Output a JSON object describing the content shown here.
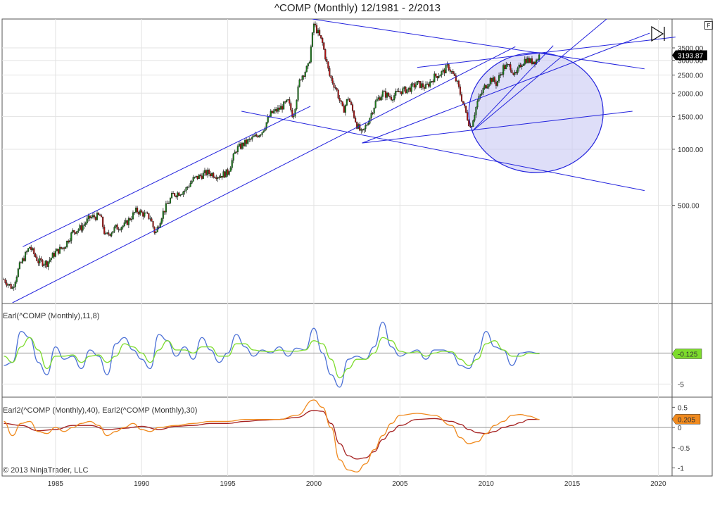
{
  "title": "^COMP (Monthly)  12/1981 - 2/2013",
  "copyright": "© 2013 NinjaTrader, LLC",
  "f_button": "F",
  "colors": {
    "line_blue": "#2222dd",
    "ellipse_fill": "#c8c8f4",
    "candle_up": "#1a7a1a",
    "candle_down": "#aa1111",
    "earl_blue": "#4a6fd6",
    "earl_green": "#7ddc2c",
    "earl2_dark": "#a52020",
    "earl2_orange": "#f08a1e",
    "price_marker": "#000000",
    "earl_marker": "#7ddc2c",
    "earl2_marker": "#f08a1e"
  },
  "chart_data": [
    {
      "type": "candlestick",
      "panel": "price",
      "y_scale": "log",
      "ylim": [
        150,
        5000
      ],
      "y_ticks": [
        "500.00",
        "1000.00",
        "1500.00",
        "2000.00",
        "2500.00",
        "3000.00",
        "3500.00"
      ],
      "last_value": "3193.87",
      "x_ticks": [
        "1985",
        "1990",
        "1995",
        "2000",
        "2005",
        "2010",
        "2015",
        "2020"
      ],
      "xlim": [
        1981.9,
        2020.8
      ],
      "close_series": {
        "x": [
          1982.0,
          1982.5,
          1982.9,
          1983.5,
          1984.0,
          1984.5,
          1985.0,
          1985.5,
          1986.0,
          1986.5,
          1987.0,
          1987.6,
          1987.9,
          1988.5,
          1989.0,
          1989.7,
          1990.5,
          1990.8,
          1991.2,
          1991.8,
          1992.5,
          1993.0,
          1993.8,
          1994.5,
          1995.0,
          1995.5,
          1996.0,
          1996.5,
          1997.0,
          1997.5,
          1998.0,
          1998.5,
          1998.8,
          1999.2,
          1999.7,
          2000.0,
          2000.2,
          2000.5,
          2000.9,
          2001.3,
          2001.7,
          2002.0,
          2002.5,
          2002.8,
          2003.2,
          2003.6,
          2004.0,
          2004.5,
          2005.0,
          2005.5,
          2006.0,
          2006.5,
          2007.0,
          2007.5,
          2007.8,
          2008.3,
          2008.8,
          2009.1,
          2009.5,
          2009.9,
          2010.3,
          2010.6,
          2011.0,
          2011.4,
          2011.7,
          2012.0,
          2012.3,
          2012.6,
          2012.9,
          2013.1
        ],
        "y": [
          200,
          180,
          235,
          300,
          250,
          245,
          280,
          300,
          360,
          380,
          430,
          440,
          340,
          380,
          390,
          470,
          430,
          350,
          450,
          570,
          600,
          690,
          750,
          720,
          750,
          1000,
          1080,
          1150,
          1250,
          1550,
          1650,
          1800,
          1500,
          2400,
          2800,
          4700,
          4300,
          3700,
          2500,
          2100,
          1600,
          1900,
          1350,
          1200,
          1450,
          1800,
          2000,
          1900,
          2050,
          2100,
          2250,
          2150,
          2450,
          2600,
          2800,
          2300,
          1600,
          1300,
          1800,
          2150,
          2400,
          2250,
          2750,
          2800,
          2450,
          2850,
          3050,
          2950,
          3000,
          3190
        ]
      },
      "trend_lines": [
        {
          "x": [
            1983.1,
            1999.8
          ],
          "y": [
            300,
            1700
          ]
        },
        {
          "x": [
            1982.5,
            2011.7
          ],
          "y": [
            150,
            3550
          ]
        },
        {
          "x": [
            1999.9,
            2019.2
          ],
          "y": [
            5000,
            2700
          ]
        },
        {
          "x": [
            1995.8,
            2019.2
          ],
          "y": [
            1600,
            600
          ]
        },
        {
          "x": [
            2002.8,
            2018.5
          ],
          "y": [
            1080,
            1600
          ]
        },
        {
          "x": [
            2002.8,
            2019.5
          ],
          "y": [
            1080,
            4200
          ]
        },
        {
          "x": [
            2006.0,
            2021.0
          ],
          "y": [
            2750,
            4000
          ]
        },
        {
          "x": [
            2009.2,
            2013.9
          ],
          "y": [
            1250,
            3600
          ]
        },
        {
          "x": [
            2009.2,
            2017.0
          ],
          "y": [
            1250,
            5000
          ]
        }
      ],
      "ellipse": {
        "cx": 2012.9,
        "cy": 1500,
        "rx_years": 3.9,
        "y_top": 3300,
        "y_bottom": 750
      }
    },
    {
      "type": "line",
      "panel": "earl",
      "label": "Earl(^COMP (Monthly),11,8)",
      "y_ticks": [
        "-5"
      ],
      "ylim": [
        -7,
        8
      ],
      "last_value": "-0.125",
      "series": [
        {
          "name": "Earl",
          "x": [
            1982.0,
            1982.5,
            1983.0,
            1983.5,
            1984.0,
            1984.5,
            1985.0,
            1985.5,
            1986.0,
            1986.5,
            1987.0,
            1987.5,
            1988.0,
            1988.5,
            1989.0,
            1989.5,
            1990.0,
            1990.5,
            1991.0,
            1991.5,
            1992.0,
            1992.5,
            1993.0,
            1993.5,
            1994.0,
            1994.5,
            1995.0,
            1995.5,
            1996.0,
            1996.5,
            1997.0,
            1997.5,
            1998.0,
            1998.5,
            1999.0,
            1999.5,
            2000.0,
            2000.5,
            2001.0,
            2001.5,
            2002.0,
            2002.5,
            2003.0,
            2003.5,
            2004.0,
            2004.5,
            2005.0,
            2005.5,
            2006.0,
            2006.5,
            2007.0,
            2007.5,
            2008.0,
            2008.5,
            2009.0,
            2009.5,
            2010.0,
            2010.5,
            2011.0,
            2011.5,
            2012.0,
            2012.5,
            2013.1
          ],
          "y": [
            -2,
            -1.5,
            3.5,
            2.5,
            -1.5,
            -3.5,
            1,
            -1,
            -0.5,
            -2.5,
            0.5,
            -0.5,
            -3.5,
            1.5,
            2.5,
            0.5,
            -1,
            -2.5,
            3,
            2,
            -0.5,
            1,
            -1,
            2.5,
            0.5,
            -1.5,
            0,
            3,
            1,
            -0.5,
            0.5,
            0,
            1,
            -0.5,
            0.8,
            0.5,
            4,
            0,
            -3.5,
            -5.5,
            -1,
            -0.5,
            -1,
            1,
            5,
            1,
            -0.5,
            0,
            0.5,
            -1,
            0.5,
            0.5,
            0,
            -2,
            -2.5,
            0,
            3.5,
            1,
            0.5,
            -2,
            0,
            0.2,
            -0.1
          ]
        },
        {
          "name": "Earl signal",
          "x": [
            1982.0,
            1982.5,
            1983.0,
            1983.5,
            1984.0,
            1984.5,
            1985.0,
            1985.5,
            1986.0,
            1986.5,
            1987.0,
            1987.5,
            1988.0,
            1988.5,
            1989.0,
            1989.5,
            1990.0,
            1990.5,
            1991.0,
            1991.5,
            1992.0,
            1992.5,
            1993.0,
            1993.5,
            1994.0,
            1994.5,
            1995.0,
            1995.5,
            1996.0,
            1996.5,
            1997.0,
            1997.5,
            1998.0,
            1998.5,
            1999.0,
            1999.5,
            2000.0,
            2000.5,
            2001.0,
            2001.5,
            2002.0,
            2002.5,
            2003.0,
            2003.5,
            2004.0,
            2004.5,
            2005.0,
            2005.5,
            2006.0,
            2006.5,
            2007.0,
            2007.5,
            2008.0,
            2008.5,
            2009.0,
            2009.5,
            2010.0,
            2010.5,
            2011.0,
            2011.5,
            2012.0,
            2012.5,
            2013.1
          ],
          "y": [
            -0.5,
            -1.5,
            1,
            2.5,
            0.5,
            -2.5,
            -0.5,
            -0.5,
            -0.3,
            -1.5,
            -0.5,
            -0.3,
            -1.5,
            -0.5,
            1.5,
            1,
            0,
            -1.5,
            0.5,
            2,
            0.5,
            0.5,
            0,
            1,
            1,
            -0.5,
            -0.5,
            1.5,
            1.5,
            0.5,
            0.3,
            0.2,
            0.5,
            0.3,
            0.3,
            0.5,
            2,
            1.5,
            -1,
            -4,
            -2.5,
            -1,
            -1,
            0,
            2.5,
            2,
            0.3,
            0,
            0.2,
            -0.5,
            0,
            0.3,
            0.2,
            -1,
            -2,
            -1,
            1.5,
            2,
            0.5,
            -0.5,
            -0.5,
            0,
            -0.1
          ]
        }
      ]
    },
    {
      "type": "line",
      "panel": "earl2",
      "label": "Earl2(^COMP (Monthly),40), Earl2(^COMP (Monthly),30)",
      "y_ticks": [
        "0.5",
        "0",
        "-0.5",
        "-1"
      ],
      "ylim": [
        -1.2,
        0.75
      ],
      "last_value": "0.205",
      "series": [
        {
          "name": "Earl2 40",
          "x": [
            1982.0,
            1983.0,
            1984.0,
            1985.0,
            1986.0,
            1987.0,
            1988.0,
            1989.0,
            1990.0,
            1991.0,
            1992.0,
            1993.0,
            1994.0,
            1995.0,
            1996.0,
            1997.0,
            1998.0,
            1999.0,
            2000.0,
            2000.5,
            2001.0,
            2001.5,
            2002.0,
            2002.5,
            2003.0,
            2003.5,
            2004.0,
            2004.5,
            2005.0,
            2006.0,
            2007.0,
            2008.0,
            2008.5,
            2009.0,
            2009.5,
            2010.0,
            2010.5,
            2011.0,
            2011.5,
            2012.0,
            2012.5,
            2013.1
          ],
          "y": [
            0.1,
            0.05,
            -0.08,
            -0.05,
            0.05,
            0.05,
            -0.05,
            -0.02,
            0.03,
            -0.05,
            0.03,
            0.05,
            0.1,
            0.1,
            0.15,
            0.18,
            0.2,
            0.25,
            0.42,
            0.4,
            0.1,
            -0.4,
            -0.7,
            -0.78,
            -0.75,
            -0.6,
            -0.3,
            -0.1,
            0.05,
            0.2,
            0.22,
            0.15,
            0.08,
            -0.05,
            -0.13,
            -0.15,
            -0.1,
            0.0,
            0.05,
            0.12,
            0.2,
            0.2
          ]
        },
        {
          "name": "Earl2 30",
          "x": [
            1982.0,
            1982.5,
            1983.0,
            1983.5,
            1984.0,
            1984.5,
            1985.0,
            1985.5,
            1986.0,
            1986.5,
            1987.0,
            1987.5,
            1988.0,
            1988.5,
            1989.0,
            1989.5,
            1990.0,
            1990.5,
            1991.0,
            1992.0,
            1993.0,
            1994.0,
            1995.0,
            1996.0,
            1997.0,
            1998.0,
            1999.0,
            2000.0,
            2000.5,
            2001.0,
            2001.5,
            2002.0,
            2002.5,
            2003.0,
            2003.5,
            2004.0,
            2004.5,
            2005.0,
            2006.0,
            2007.0,
            2008.0,
            2008.5,
            2009.0,
            2009.5,
            2010.0,
            2010.5,
            2011.0,
            2011.5,
            2012.0,
            2012.5,
            2013.1
          ],
          "y": [
            0.15,
            -0.2,
            0.1,
            0.15,
            -0.1,
            -0.15,
            0.0,
            -0.1,
            0.0,
            0.1,
            0.15,
            0.05,
            -0.2,
            -0.1,
            0.0,
            0.1,
            -0.05,
            -0.1,
            0.0,
            0.05,
            0.1,
            0.15,
            0.15,
            0.2,
            0.2,
            0.2,
            0.3,
            0.68,
            0.5,
            0.0,
            -0.8,
            -1.05,
            -1.1,
            -0.9,
            -0.55,
            -0.2,
            0.1,
            0.3,
            0.35,
            0.3,
            0.05,
            -0.25,
            -0.4,
            -0.35,
            -0.15,
            0.05,
            0.15,
            0.3,
            0.32,
            0.28,
            0.2
          ]
        }
      ]
    }
  ]
}
